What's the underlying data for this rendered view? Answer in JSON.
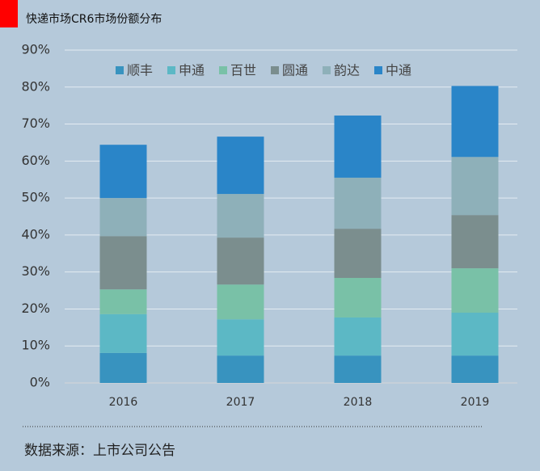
{
  "chart_data": {
    "type": "stacked-bar",
    "title": "快递市场CR6市场份额分布",
    "source": "数据来源：上市公司公告",
    "categories": [
      "2016",
      "2017",
      "2018",
      "2019"
    ],
    "series": [
      {
        "name": "顺丰",
        "color": "#3893bf",
        "values": [
          8.1,
          7.4,
          7.4,
          7.4
        ]
      },
      {
        "name": "申通",
        "color": "#5cb8c5",
        "values": [
          10.5,
          9.8,
          10.3,
          11.6
        ]
      },
      {
        "name": "百世",
        "color": "#79c1a7",
        "values": [
          6.7,
          9.4,
          10.7,
          12
        ]
      },
      {
        "name": "圆通",
        "color": "#7b8e8e",
        "values": [
          14.4,
          12.7,
          13.3,
          14.4
        ]
      },
      {
        "name": "韵达",
        "color": "#8eb0b9",
        "values": [
          10.3,
          11.8,
          13.8,
          15.7
        ]
      },
      {
        "name": "中通",
        "color": "#2a85c8",
        "values": [
          14.4,
          15.5,
          16.8,
          19.2
        ]
      }
    ],
    "ylim": [
      0,
      90
    ],
    "yticks": [
      {
        "value": 0,
        "label": "0%"
      },
      {
        "value": 10,
        "label": "10%"
      },
      {
        "value": 20,
        "label": "20%"
      },
      {
        "value": 30,
        "label": "30%"
      },
      {
        "value": 40,
        "label": "40%"
      },
      {
        "value": 50,
        "label": "50%"
      },
      {
        "value": 60,
        "label": "60%"
      },
      {
        "value": 70,
        "label": "70%"
      },
      {
        "value": 80,
        "label": "80%"
      },
      {
        "value": 90,
        "label": "90%"
      }
    ],
    "grid": true,
    "legend": "top"
  }
}
